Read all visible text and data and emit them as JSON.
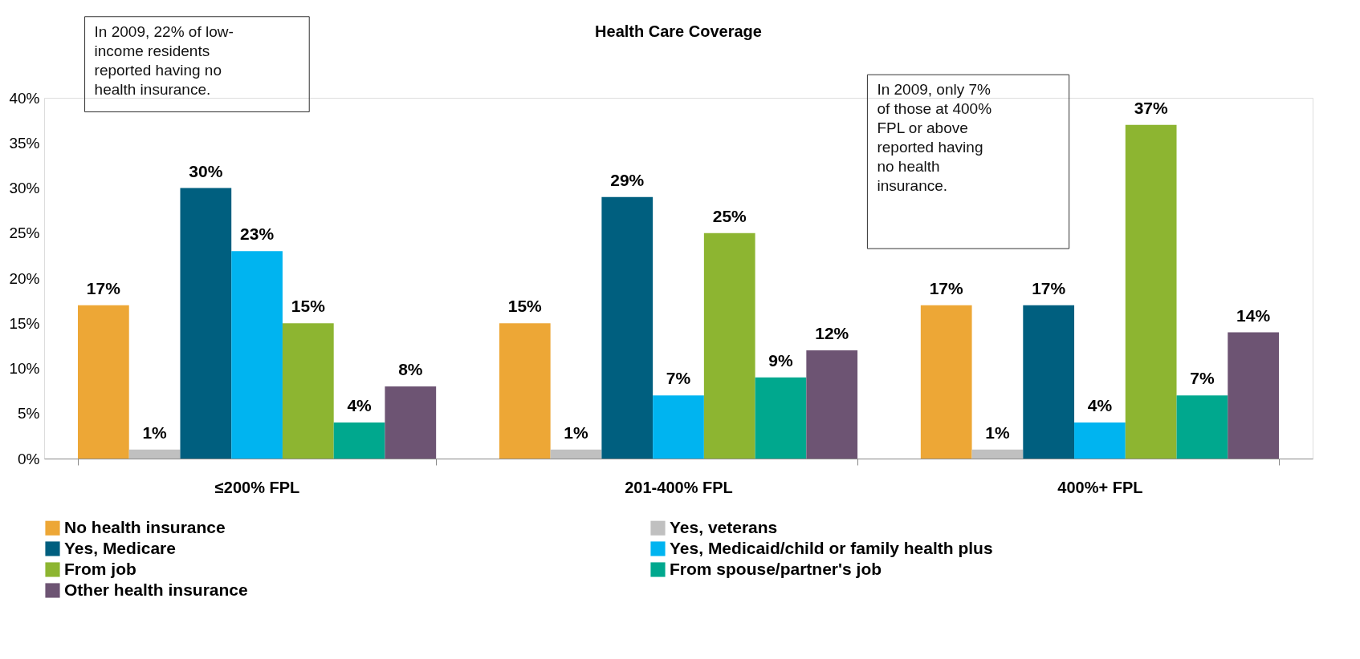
{
  "chart_data": {
    "type": "bar",
    "title": "Health Care Coverage",
    "categories": [
      "≤200% FPL",
      "201-400% FPL",
      "400%+ FPL"
    ],
    "series": [
      {
        "name": "No health insurance",
        "color": "#eda736",
        "values": [
          17,
          15,
          17
        ],
        "value_labels": [
          "17%",
          "15%",
          "17%"
        ]
      },
      {
        "name": "Yes, veterans",
        "color": "#c0c0c0",
        "values": [
          1,
          1,
          1
        ],
        "value_labels": [
          "1%",
          "1%",
          "1%"
        ]
      },
      {
        "name": "Yes, Medicare",
        "color": "#005f7f",
        "values": [
          30,
          29,
          17
        ],
        "value_labels": [
          "30%",
          "29%",
          "17%"
        ]
      },
      {
        "name": "Yes, Medicaid/child or family health plus",
        "color": "#00b4f0",
        "values": [
          23,
          7,
          4
        ],
        "value_labels": [
          "23%",
          "7%",
          "4%"
        ]
      },
      {
        "name": "From job",
        "color": "#8db531",
        "values": [
          15,
          25,
          37
        ],
        "value_labels": [
          "15%",
          "25%",
          "37%"
        ]
      },
      {
        "name": "From spouse/partner's job",
        "color": "#00a88e",
        "values": [
          4,
          9,
          7
        ],
        "value_labels": [
          "4%",
          "9%",
          "7%"
        ]
      },
      {
        "name": "Other health insurance",
        "color": "#6d5473",
        "values": [
          8,
          12,
          14
        ],
        "value_labels": [
          "8%",
          "12%",
          "14%"
        ]
      }
    ],
    "ylim": [
      0,
      40
    ],
    "yticks": [
      {
        "value": 0,
        "label": "0%"
      },
      {
        "value": 5,
        "label": "5%"
      },
      {
        "value": 10,
        "label": "10%"
      },
      {
        "value": 15,
        "label": "15%"
      },
      {
        "value": 20,
        "label": "20%"
      },
      {
        "value": 25,
        "label": "25%"
      },
      {
        "value": 30,
        "label": "30%"
      },
      {
        "value": 35,
        "label": "35%"
      },
      {
        "value": 40,
        "label": "40%"
      }
    ],
    "annotations": [
      "In 2009, 22% of low-income residents reported having no health insurance.",
      "In 2009, only 7% of those at 400% FPL or above reported having no health insurance."
    ],
    "grid": false,
    "legend": "bottom"
  }
}
